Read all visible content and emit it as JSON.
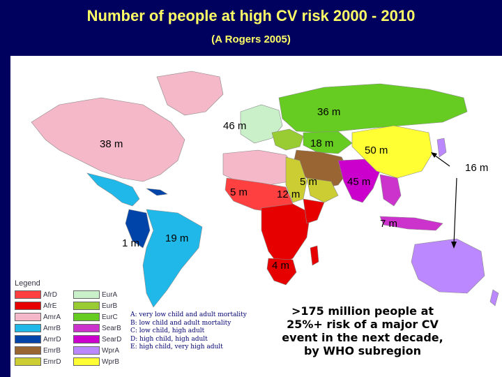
{
  "title": "Number of people at high CV risk 2000 - 2010",
  "subtitle": "(A Rogers 2005)",
  "labels": {
    "eur_north": "36 m",
    "eur_west": "46 m",
    "north_america": "38 m",
    "eastern_med": "18 m",
    "china": "50 m",
    "japan": "16 m",
    "north_africa": "5 m",
    "sub_saharan_west": "5 m",
    "south_asia": "45 m",
    "west_africa": "12 m",
    "southeast_asia": "7 m",
    "andes": "1 m",
    "brazil": "19 m",
    "southern_africa": "4 m"
  },
  "legend": {
    "title": "Legend",
    "items": [
      {
        "code": "AfrD",
        "color": "#ff4040"
      },
      {
        "code": "EurA",
        "color": "#c9f0c9"
      },
      {
        "code": "AfrE",
        "color": "#e60000"
      },
      {
        "code": "EurB",
        "color": "#99cc33"
      },
      {
        "code": "AmrA",
        "color": "#f5b8c8"
      },
      {
        "code": "EurC",
        "color": "#66cc22"
      },
      {
        "code": "AmrB",
        "color": "#20b8e8"
      },
      {
        "code": "SearB",
        "color": "#cc33cc"
      },
      {
        "code": "AmrD",
        "color": "#0044aa"
      },
      {
        "code": "SearD",
        "color": "#cc00cc"
      },
      {
        "code": "EmrB",
        "color": "#996633"
      },
      {
        "code": "WprA",
        "color": "#bb88ff"
      },
      {
        "code": "EmrD",
        "color": "#cccc33"
      },
      {
        "code": "WprB",
        "color": "#ffff33"
      }
    ]
  },
  "mortality_key": [
    "A: very low child and adult mortality",
    "B: low child and adult mortality",
    "C: low child, high adult",
    "D: high child, high adult",
    "E: high child, very high adult"
  ],
  "summary_lines": [
    ">175 million people at",
    "25%+ risk of a major CV",
    "event in the next decade,",
    "by WHO subregion"
  ]
}
